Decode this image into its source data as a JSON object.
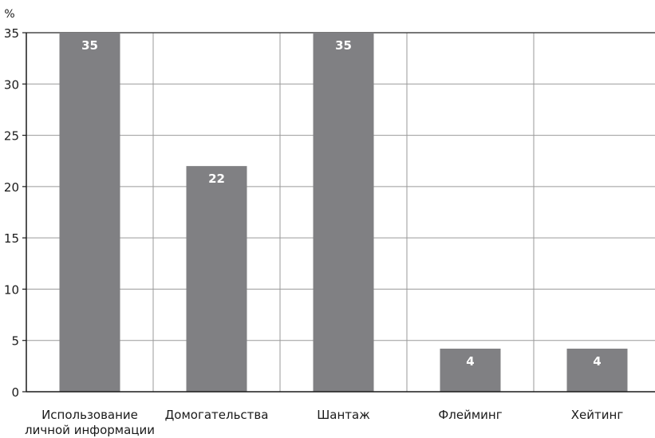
{
  "chart_data": {
    "type": "bar",
    "title": "",
    "xlabel": "",
    "ylabel": "%",
    "ylim": [
      0,
      35
    ],
    "yticks": [
      0,
      5,
      10,
      15,
      20,
      25,
      30,
      35
    ],
    "grid": true,
    "categories": [
      "Использование личной информации",
      "Домогательства",
      "Шантаж",
      "Флейминг",
      "Хейтинг"
    ],
    "category_lines": [
      [
        "Использование",
        "личной информации"
      ],
      [
        "Домогательства"
      ],
      [
        "Шантаж"
      ],
      [
        "Флейминг"
      ],
      [
        "Хейтинг"
      ]
    ],
    "values": [
      35,
      22,
      35,
      4.2,
      4.2
    ],
    "data_labels": [
      "35",
      "22",
      "35",
      "4",
      "4"
    ],
    "bar_color": "#808083"
  }
}
